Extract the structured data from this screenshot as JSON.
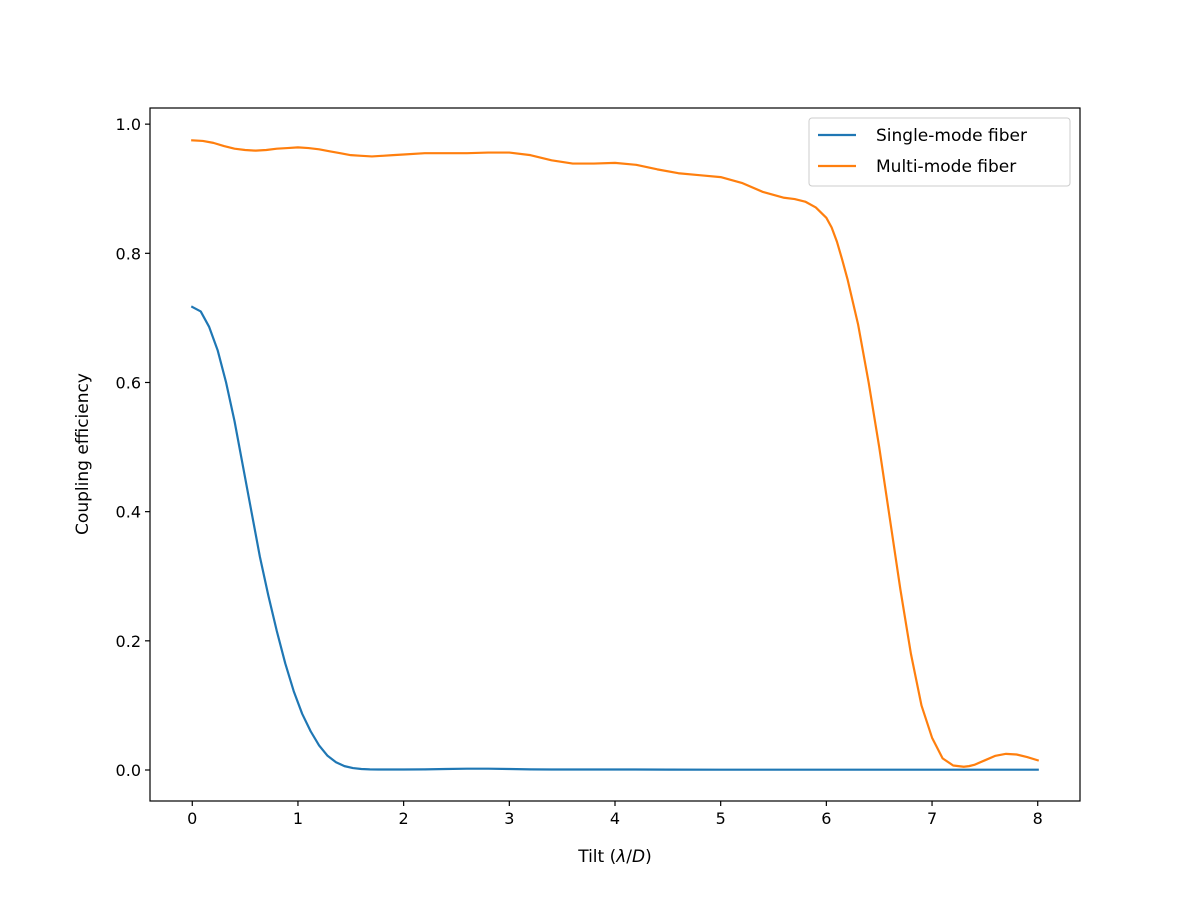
{
  "chart_data": {
    "type": "line",
    "title": "",
    "xlabel_prefix": "Tilt (",
    "xlabel_lambda": "λ",
    "xlabel_slash": "/",
    "xlabel_d": "D",
    "xlabel_suffix": ")",
    "ylabel": "Coupling efficiency",
    "xlim": [
      -0.4,
      8.4
    ],
    "ylim": [
      -0.048,
      1.025
    ],
    "xticks": [
      0,
      1,
      2,
      3,
      4,
      5,
      6,
      7,
      8
    ],
    "yticks": [
      0.0,
      0.2,
      0.4,
      0.6,
      0.8,
      1.0
    ],
    "xtick_labels": [
      "0",
      "1",
      "2",
      "3",
      "4",
      "5",
      "6",
      "7",
      "8"
    ],
    "ytick_labels": [
      "0.0",
      "0.2",
      "0.4",
      "0.6",
      "0.8",
      "1.0"
    ],
    "grid": false,
    "legend_position": "top-right",
    "series": [
      {
        "name": "Single-mode fiber",
        "color": "#1f77b4",
        "x": [
          0,
          0.08,
          0.16,
          0.24,
          0.32,
          0.4,
          0.48,
          0.56,
          0.64,
          0.72,
          0.8,
          0.88,
          0.96,
          1.04,
          1.12,
          1.2,
          1.28,
          1.36,
          1.44,
          1.52,
          1.6,
          1.68,
          1.76,
          1.84,
          2.0,
          2.2,
          2.4,
          2.6,
          2.8,
          3.0,
          3.2,
          3.4,
          3.6,
          3.8,
          4.0,
          4.5,
          5.0,
          5.5,
          6.0,
          6.5,
          7.0,
          7.5,
          8.0
        ],
        "y": [
          0.717,
          0.71,
          0.686,
          0.65,
          0.6,
          0.54,
          0.47,
          0.4,
          0.33,
          0.27,
          0.215,
          0.165,
          0.122,
          0.087,
          0.06,
          0.038,
          0.022,
          0.012,
          0.006,
          0.003,
          0.0015,
          0.001,
          0.0008,
          0.0008,
          0.0008,
          0.001,
          0.0015,
          0.002,
          0.002,
          0.0015,
          0.001,
          0.0008,
          0.0008,
          0.0008,
          0.0008,
          0.0006,
          0.0005,
          0.0005,
          0.0005,
          0.0005,
          0.0005,
          0.0005,
          0.0005
        ]
      },
      {
        "name": "Multi-mode fiber",
        "color": "#ff7f0e",
        "x": [
          0,
          0.1,
          0.2,
          0.3,
          0.4,
          0.5,
          0.6,
          0.7,
          0.8,
          0.9,
          1.0,
          1.1,
          1.2,
          1.3,
          1.4,
          1.5,
          1.6,
          1.7,
          1.8,
          1.9,
          2.0,
          2.2,
          2.4,
          2.6,
          2.8,
          3.0,
          3.2,
          3.4,
          3.6,
          3.8,
          4.0,
          4.2,
          4.4,
          4.6,
          4.8,
          5.0,
          5.2,
          5.4,
          5.6,
          5.7,
          5.8,
          5.9,
          6.0,
          6.05,
          6.1,
          6.15,
          6.2,
          6.3,
          6.4,
          6.5,
          6.6,
          6.7,
          6.8,
          6.9,
          7.0,
          7.1,
          7.2,
          7.3,
          7.35,
          7.4,
          7.5,
          7.6,
          7.7,
          7.8,
          7.9,
          8.0
        ],
        "y": [
          0.975,
          0.974,
          0.971,
          0.966,
          0.962,
          0.96,
          0.959,
          0.96,
          0.962,
          0.963,
          0.964,
          0.963,
          0.961,
          0.958,
          0.955,
          0.952,
          0.951,
          0.95,
          0.951,
          0.952,
          0.953,
          0.955,
          0.955,
          0.955,
          0.956,
          0.956,
          0.952,
          0.944,
          0.939,
          0.939,
          0.94,
          0.937,
          0.93,
          0.924,
          0.921,
          0.918,
          0.909,
          0.895,
          0.886,
          0.884,
          0.88,
          0.871,
          0.855,
          0.84,
          0.818,
          0.79,
          0.76,
          0.69,
          0.6,
          0.5,
          0.39,
          0.28,
          0.18,
          0.1,
          0.05,
          0.018,
          0.007,
          0.005,
          0.006,
          0.008,
          0.015,
          0.022,
          0.025,
          0.024,
          0.02,
          0.015
        ]
      }
    ]
  }
}
